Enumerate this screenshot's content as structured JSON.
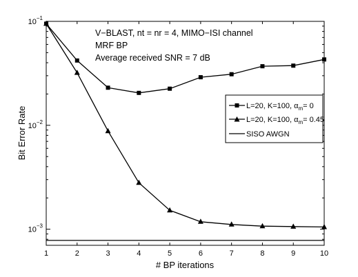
{
  "chart_data": {
    "type": "line",
    "title": "",
    "xlabel": "# BP iterations",
    "ylabel": "Bit Error Rate",
    "x": [
      1,
      2,
      3,
      4,
      5,
      6,
      7,
      8,
      9,
      10
    ],
    "xlim": [
      1,
      10
    ],
    "ylim": [
      0.0007,
      0.1
    ],
    "y_scale": "log",
    "grid": false,
    "x_tick_labels": [
      "1",
      "2",
      "3",
      "4",
      "5",
      "6",
      "7",
      "8",
      "9",
      "10"
    ],
    "y_ticks": [
      {
        "value": 0.1,
        "base": "10",
        "exp": "−1"
      },
      {
        "value": 0.01,
        "base": "10",
        "exp": "−2"
      },
      {
        "value": 0.001,
        "base": "10",
        "exp": "−3"
      }
    ],
    "annotations": [
      "V−BLAST, nt = nr = 4, MIMO−ISI channel",
      "MRF BP",
      "Average received SNR = 7 dB"
    ],
    "legend_position": "right",
    "series": [
      {
        "name_prefix": "L=20, K=100, α",
        "name_sub": "m",
        "name_suffix": "= 0",
        "marker": "square",
        "values": [
          0.095,
          0.042,
          0.023,
          0.0205,
          0.0225,
          0.029,
          0.031,
          0.037,
          0.0375,
          0.043
        ]
      },
      {
        "name_prefix": "L=20, K=100, α",
        "name_sub": "m",
        "name_suffix": "= 0.45",
        "marker": "triangle",
        "values": [
          0.095,
          0.032,
          0.0088,
          0.0028,
          0.00152,
          0.00118,
          0.00111,
          0.00107,
          0.00106,
          0.00105
        ]
      },
      {
        "name": "SISO AWGN",
        "marker": "none",
        "values": [
          0.00078,
          0.00078,
          0.00078,
          0.00078,
          0.00078,
          0.00078,
          0.00078,
          0.00078,
          0.00078,
          0.00078
        ]
      }
    ]
  }
}
